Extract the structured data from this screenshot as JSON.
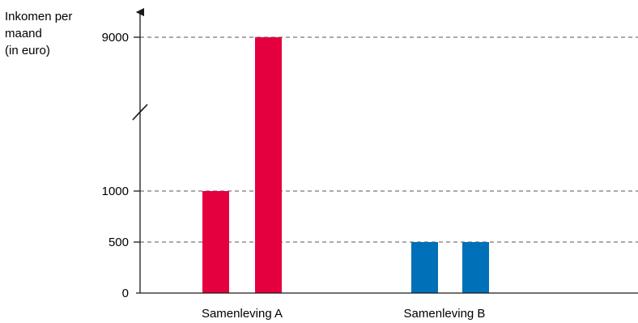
{
  "chart_data": {
    "type": "bar",
    "ylabel": [
      "Inkomen per",
      "maand",
      "(in euro)"
    ],
    "yticks": [
      0,
      500,
      1000,
      9000
    ],
    "ylim": [
      0,
      9000
    ],
    "axis_break": "between 1000 and 9000",
    "gridlines": "dashed at 500, 1000, 9000",
    "groups": [
      {
        "label": "Samenleving A",
        "color": "#e4003f",
        "values": [
          1000,
          9000
        ]
      },
      {
        "label": "Samenleving B",
        "color": "#0070b8",
        "values": [
          500,
          500
        ]
      }
    ]
  }
}
